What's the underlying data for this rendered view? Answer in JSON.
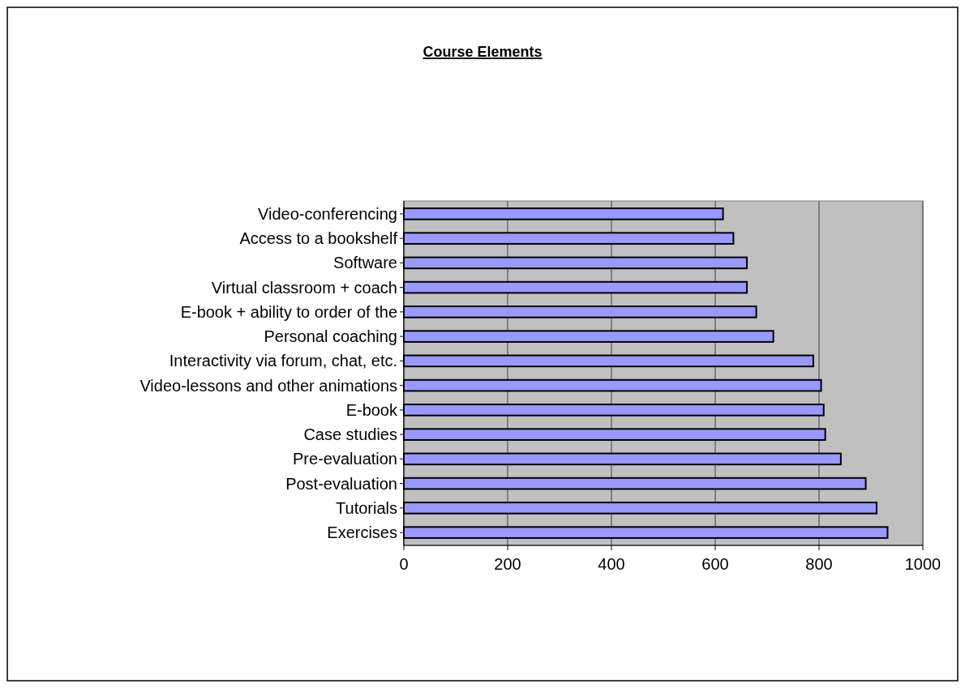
{
  "chart_data": {
    "type": "bar",
    "orientation": "horizontal",
    "title": "Course Elements",
    "categories": [
      "Video-conferencing",
      "Access to a bookshelf",
      "Software",
      "Virtual classroom + coach",
      "E-book + ability to order of the",
      "Personal coaching",
      "Interactivity via forum, chat, etc.",
      "Video-lessons and other animations",
      "E-book",
      "Case studies",
      "Pre-evaluation",
      "Post-evaluation",
      "Tutorials",
      "Exercises"
    ],
    "values": [
      615,
      635,
      661,
      661,
      679,
      712,
      789,
      804,
      809,
      812,
      842,
      890,
      911,
      932
    ],
    "color": "#9999ff",
    "xlim": [
      0,
      1000
    ],
    "xticks": [
      0,
      200,
      400,
      600,
      800,
      1000
    ],
    "grid": "x"
  }
}
